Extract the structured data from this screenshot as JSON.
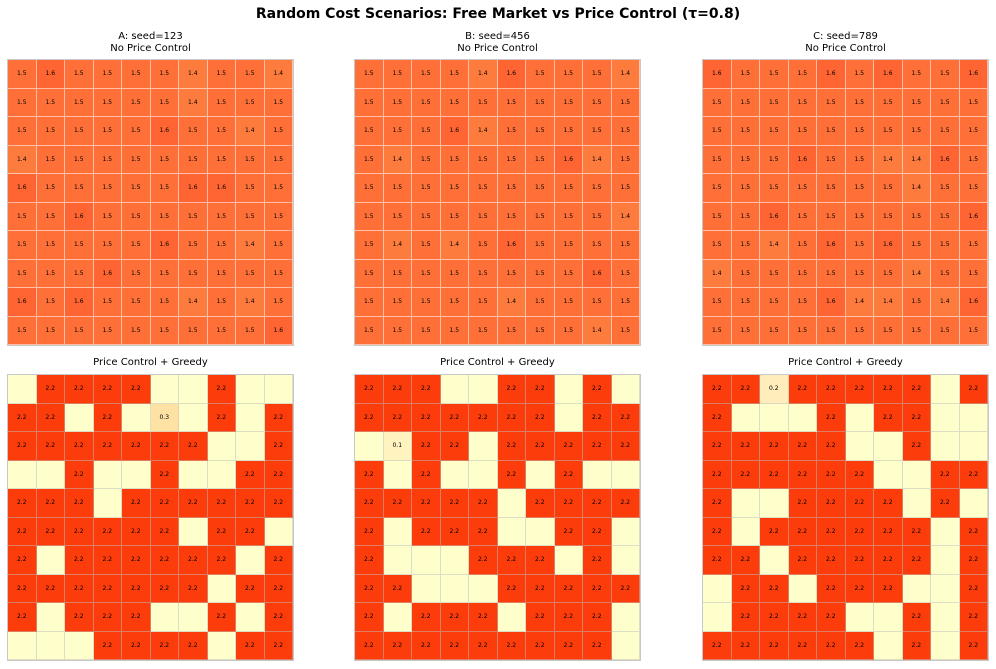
{
  "title": "Random Cost Scenarios: Free Market vs Price Control (τ=0.8)",
  "colors": {
    "empty": "#ffffcc",
    "top_1_4": "#fe7b3e",
    "top_1_5": "#fe7038",
    "top_1_6": "#fe6532",
    "bottom_2_2": "#fc3c0b",
    "low_0_3": "#fee2a4",
    "low_0_2": "#ffeebb",
    "low_0_1": "#fff3c0"
  },
  "chart_data": [
    {
      "type": "heatmap",
      "title": "A: seed=123",
      "subtitle": "No Price Control",
      "values": [
        [
          "1.5",
          "1.6",
          "1.5",
          "1.5",
          "1.5",
          "1.5",
          "1.4",
          "1.5",
          "1.5",
          "1.4"
        ],
        [
          "1.5",
          "1.5",
          "1.5",
          "1.5",
          "1.5",
          "1.5",
          "1.4",
          "1.5",
          "1.5",
          "1.5"
        ],
        [
          "1.5",
          "1.5",
          "1.5",
          "1.5",
          "1.5",
          "1.6",
          "1.5",
          "1.5",
          "1.4",
          "1.5"
        ],
        [
          "1.4",
          "1.5",
          "1.5",
          "1.5",
          "1.5",
          "1.5",
          "1.5",
          "1.5",
          "1.5",
          "1.5"
        ],
        [
          "1.6",
          "1.5",
          "1.5",
          "1.5",
          "1.5",
          "1.5",
          "1.6",
          "1.6",
          "1.5",
          "1.5"
        ],
        [
          "1.5",
          "1.5",
          "1.6",
          "1.5",
          "1.5",
          "1.5",
          "1.5",
          "1.5",
          "1.5",
          "1.5"
        ],
        [
          "1.5",
          "1.5",
          "1.5",
          "1.5",
          "1.5",
          "1.6",
          "1.5",
          "1.5",
          "1.4",
          "1.5"
        ],
        [
          "1.5",
          "1.5",
          "1.5",
          "1.6",
          "1.5",
          "1.5",
          "1.5",
          "1.5",
          "1.5",
          "1.5"
        ],
        [
          "1.6",
          "1.5",
          "1.6",
          "1.5",
          "1.5",
          "1.5",
          "1.4",
          "1.5",
          "1.4",
          "1.5"
        ],
        [
          "1.5",
          "1.5",
          "1.5",
          "1.5",
          "1.5",
          "1.5",
          "1.5",
          "1.5",
          "1.5",
          "1.6"
        ]
      ]
    },
    {
      "type": "heatmap",
      "title": "B: seed=456",
      "subtitle": "No Price Control",
      "values": [
        [
          "1.5",
          "1.5",
          "1.5",
          "1.5",
          "1.4",
          "1.6",
          "1.5",
          "1.5",
          "1.5",
          "1.4"
        ],
        [
          "1.5",
          "1.5",
          "1.5",
          "1.5",
          "1.5",
          "1.5",
          "1.5",
          "1.5",
          "1.5",
          "1.5"
        ],
        [
          "1.5",
          "1.5",
          "1.5",
          "1.6",
          "1.4",
          "1.5",
          "1.5",
          "1.5",
          "1.5",
          "1.5"
        ],
        [
          "1.5",
          "1.4",
          "1.5",
          "1.5",
          "1.5",
          "1.5",
          "1.5",
          "1.6",
          "1.4",
          "1.5"
        ],
        [
          "1.5",
          "1.5",
          "1.5",
          "1.5",
          "1.5",
          "1.5",
          "1.5",
          "1.5",
          "1.5",
          "1.5"
        ],
        [
          "1.5",
          "1.5",
          "1.5",
          "1.5",
          "1.5",
          "1.5",
          "1.5",
          "1.5",
          "1.5",
          "1.4"
        ],
        [
          "1.5",
          "1.4",
          "1.5",
          "1.4",
          "1.5",
          "1.6",
          "1.5",
          "1.5",
          "1.5",
          "1.5"
        ],
        [
          "1.5",
          "1.5",
          "1.5",
          "1.5",
          "1.5",
          "1.5",
          "1.5",
          "1.5",
          "1.6",
          "1.5"
        ],
        [
          "1.5",
          "1.5",
          "1.5",
          "1.5",
          "1.5",
          "1.4",
          "1.5",
          "1.5",
          "1.5",
          "1.5"
        ],
        [
          "1.5",
          "1.5",
          "1.5",
          "1.5",
          "1.5",
          "1.5",
          "1.5",
          "1.5",
          "1.4",
          "1.5"
        ]
      ]
    },
    {
      "type": "heatmap",
      "title": "C: seed=789",
      "subtitle": "No Price Control",
      "values": [
        [
          "1.6",
          "1.5",
          "1.5",
          "1.5",
          "1.6",
          "1.5",
          "1.6",
          "1.5",
          "1.5",
          "1.6"
        ],
        [
          "1.5",
          "1.5",
          "1.5",
          "1.5",
          "1.5",
          "1.5",
          "1.5",
          "1.5",
          "1.5",
          "1.5"
        ],
        [
          "1.5",
          "1.5",
          "1.5",
          "1.5",
          "1.5",
          "1.5",
          "1.5",
          "1.5",
          "1.5",
          "1.5"
        ],
        [
          "1.5",
          "1.5",
          "1.5",
          "1.6",
          "1.5",
          "1.5",
          "1.4",
          "1.4",
          "1.6",
          "1.5"
        ],
        [
          "1.5",
          "1.5",
          "1.5",
          "1.5",
          "1.5",
          "1.5",
          "1.5",
          "1.4",
          "1.5",
          "1.5"
        ],
        [
          "1.5",
          "1.5",
          "1.6",
          "1.5",
          "1.5",
          "1.5",
          "1.5",
          "1.5",
          "1.5",
          "1.6"
        ],
        [
          "1.5",
          "1.5",
          "1.4",
          "1.5",
          "1.6",
          "1.5",
          "1.6",
          "1.5",
          "1.5",
          "1.5"
        ],
        [
          "1.4",
          "1.5",
          "1.5",
          "1.5",
          "1.5",
          "1.5",
          "1.5",
          "1.4",
          "1.5",
          "1.5"
        ],
        [
          "1.5",
          "1.5",
          "1.5",
          "1.5",
          "1.6",
          "1.4",
          "1.4",
          "1.5",
          "1.4",
          "1.6"
        ],
        [
          "1.5",
          "1.5",
          "1.5",
          "1.5",
          "1.5",
          "1.5",
          "1.5",
          "1.5",
          "1.5",
          "1.5"
        ]
      ]
    },
    {
      "type": "heatmap",
      "title": "Price Control + Greedy",
      "values": [
        [
          "",
          "2.2",
          "2.2",
          "2.2",
          "2.2",
          "",
          "",
          "2.2",
          "",
          ""
        ],
        [
          "2.2",
          "2.2",
          "",
          "2.2",
          "",
          "0.3",
          "",
          "2.2",
          "",
          "2.2"
        ],
        [
          "2.2",
          "2.2",
          "2.2",
          "2.2",
          "2.2",
          "2.2",
          "2.2",
          "",
          "",
          "2.2"
        ],
        [
          "",
          "",
          "2.2",
          "",
          "",
          "2.2",
          "",
          "",
          "2.2",
          "2.2"
        ],
        [
          "2.2",
          "2.2",
          "2.2",
          "",
          "2.2",
          "2.2",
          "2.2",
          "2.2",
          "2.2",
          "2.2"
        ],
        [
          "2.2",
          "2.2",
          "2.2",
          "2.2",
          "2.2",
          "2.2",
          "",
          "2.2",
          "2.2",
          ""
        ],
        [
          "2.2",
          "",
          "2.2",
          "2.2",
          "2.2",
          "2.2",
          "2.2",
          "2.2",
          "",
          "2.2"
        ],
        [
          "2.2",
          "2.2",
          "2.2",
          "2.2",
          "2.2",
          "2.2",
          "2.2",
          "",
          "2.2",
          "2.2"
        ],
        [
          "2.2",
          "",
          "2.2",
          "2.2",
          "2.2",
          "",
          "",
          "2.2",
          "",
          "2.2"
        ],
        [
          "",
          "",
          "",
          "2.2",
          "2.2",
          "2.2",
          "2.2",
          "",
          "2.2",
          "2.2"
        ]
      ]
    },
    {
      "type": "heatmap",
      "title": "Price Control + Greedy",
      "values": [
        [
          "2.2",
          "2.2",
          "2.2",
          "",
          "",
          "2.2",
          "2.2",
          "",
          "2.2",
          ""
        ],
        [
          "2.2",
          "2.2",
          "2.2",
          "2.2",
          "2.2",
          "2.2",
          "2.2",
          "",
          "2.2",
          "2.2"
        ],
        [
          "",
          "0.1",
          "2.2",
          "2.2",
          "",
          "2.2",
          "2.2",
          "2.2",
          "2.2",
          "2.2"
        ],
        [
          "2.2",
          "",
          "2.2",
          "",
          "",
          "2.2",
          "",
          "2.2",
          "",
          ""
        ],
        [
          "2.2",
          "2.2",
          "2.2",
          "2.2",
          "2.2",
          "",
          "2.2",
          "2.2",
          "2.2",
          "2.2"
        ],
        [
          "2.2",
          "",
          "2.2",
          "2.2",
          "2.2",
          "",
          "",
          "2.2",
          "2.2",
          ""
        ],
        [
          "2.2",
          "",
          "",
          "",
          "2.2",
          "2.2",
          "2.2",
          "",
          "2.2",
          ""
        ],
        [
          "2.2",
          "2.2",
          "",
          "",
          "",
          "2.2",
          "2.2",
          "2.2",
          "2.2",
          "2.2"
        ],
        [
          "2.2",
          "",
          "2.2",
          "2.2",
          "2.2",
          "",
          "2.2",
          "2.2",
          "2.2",
          ""
        ],
        [
          "2.2",
          "2.2",
          "2.2",
          "2.2",
          "2.2",
          "2.2",
          "2.2",
          "2.2",
          "2.2",
          ""
        ]
      ]
    },
    {
      "type": "heatmap",
      "title": "Price Control + Greedy",
      "values": [
        [
          "2.2",
          "2.2",
          "0.2",
          "2.2",
          "2.2",
          "2.2",
          "2.2",
          "2.2",
          "",
          "2.2"
        ],
        [
          "2.2",
          "",
          "",
          "",
          "2.2",
          "",
          "2.2",
          "2.2",
          "",
          ""
        ],
        [
          "2.2",
          "2.2",
          "2.2",
          "2.2",
          "2.2",
          "",
          "",
          "2.2",
          "",
          ""
        ],
        [
          "2.2",
          "2.2",
          "2.2",
          "2.2",
          "2.2",
          "2.2",
          "",
          "",
          "2.2",
          "2.2"
        ],
        [
          "2.2",
          "",
          "",
          "2.2",
          "2.2",
          "2.2",
          "2.2",
          "",
          "2.2",
          ""
        ],
        [
          "2.2",
          "",
          "2.2",
          "2.2",
          "2.2",
          "2.2",
          "2.2",
          "2.2",
          "",
          "2.2"
        ],
        [
          "2.2",
          "2.2",
          "",
          "2.2",
          "2.2",
          "2.2",
          "2.2",
          "2.2",
          "",
          "2.2"
        ],
        [
          "",
          "2.2",
          "2.2",
          "",
          "2.2",
          "2.2",
          "2.2",
          "",
          "",
          "2.2"
        ],
        [
          "",
          "2.2",
          "2.2",
          "2.2",
          "2.2",
          "",
          "",
          "2.2",
          "",
          "2.2"
        ],
        [
          "2.2",
          "2.2",
          "2.2",
          "2.2",
          "2.2",
          "2.2",
          "",
          "2.2",
          "",
          "2.2"
        ]
      ]
    }
  ]
}
